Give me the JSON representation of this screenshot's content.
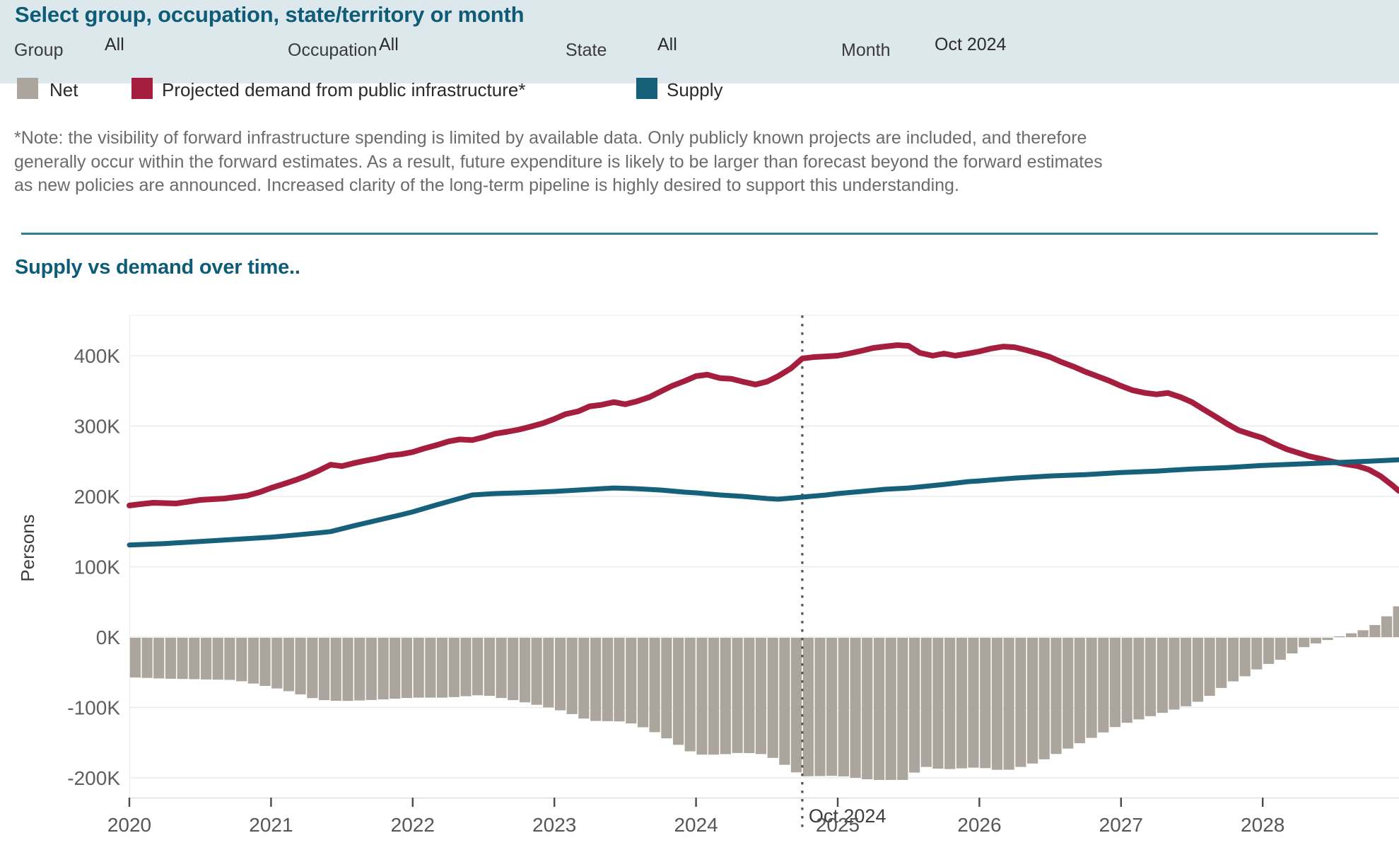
{
  "header": {
    "title": "Select group, occupation, state/territory or month",
    "filters": [
      {
        "label": "Group",
        "value": "All"
      },
      {
        "label": "Occupation",
        "value": "All"
      },
      {
        "label": "State",
        "value": "All"
      },
      {
        "label": "Month",
        "value": "Oct 2024"
      }
    ]
  },
  "legend": {
    "items": [
      {
        "label": "Net",
        "color": "#aca59d"
      },
      {
        "label": "Projected demand from public infrastructure*",
        "color": "#a61e3d"
      },
      {
        "label": "Supply",
        "color": "#16607a"
      }
    ]
  },
  "note": {
    "lines": [
      "*Note: the visibility of forward infrastructure spending is limited by available data. Only publicly known projects are included, and therefore",
      "generally occur within the forward estimates. As a result, future expenditure is likely to be larger than forecast beyond the forward estimates",
      "as new policies are announced. Increased clarity of the long-term pipeline is highly desired to support this understanding."
    ]
  },
  "section": {
    "title": "Supply vs demand over time.."
  },
  "chart_data": {
    "type": "line+bar",
    "title": "Supply vs demand over time..",
    "ylabel": "Persons",
    "unit": "thousand persons (K)",
    "ylim": [
      -250,
      460
    ],
    "xlim": [
      2020,
      2028.96
    ],
    "grid": true,
    "legend_position": "top",
    "yticks": [
      {
        "value": 400,
        "label": "400K"
      },
      {
        "value": 300,
        "label": "300K"
      },
      {
        "value": 200,
        "label": "200K"
      },
      {
        "value": 100,
        "label": "100K"
      },
      {
        "value": 0,
        "label": "0K"
      },
      {
        "value": -100,
        "label": "-100K"
      },
      {
        "value": -200,
        "label": "-200K"
      }
    ],
    "xticks": [
      {
        "value": 2020,
        "label": "2020"
      },
      {
        "value": 2021,
        "label": "2021"
      },
      {
        "value": 2022,
        "label": "2022"
      },
      {
        "value": 2023,
        "label": "2023"
      },
      {
        "value": 2024,
        "label": "2024"
      },
      {
        "value": 2025,
        "label": "2025"
      },
      {
        "value": 2026,
        "label": "2026"
      },
      {
        "value": 2027,
        "label": "2027"
      },
      {
        "value": 2028,
        "label": "2028"
      }
    ],
    "annotation": {
      "x": 2024.75,
      "label": "Oct 2024",
      "style": "vertical-dotted-line"
    },
    "series": [
      {
        "name": "Net",
        "type": "bar",
        "color": "#aca59d",
        "derivation": "Supply minus Projected demand, drawn as monthly bars",
        "points": [
          [
            2020.0,
            -56
          ],
          [
            2020.25,
            -58
          ],
          [
            2020.5,
            -59
          ],
          [
            2020.75,
            -60
          ],
          [
            2021.0,
            -70
          ],
          [
            2021.17,
            -78
          ],
          [
            2021.33,
            -88
          ],
          [
            2021.5,
            -90
          ],
          [
            2021.75,
            -88
          ],
          [
            2022.0,
            -85
          ],
          [
            2022.25,
            -85
          ],
          [
            2022.5,
            -81
          ],
          [
            2022.75,
            -90
          ],
          [
            2022.92,
            -97
          ],
          [
            2023.08,
            -105
          ],
          [
            2023.25,
            -118
          ],
          [
            2023.5,
            -119
          ],
          [
            2023.67,
            -130
          ],
          [
            2023.83,
            -147
          ],
          [
            2024.0,
            -166
          ],
          [
            2024.17,
            -166
          ],
          [
            2024.33,
            -163
          ],
          [
            2024.5,
            -166
          ],
          [
            2024.58,
            -175
          ],
          [
            2024.67,
            -186
          ],
          [
            2024.75,
            -197
          ],
          [
            2025.0,
            -196
          ],
          [
            2025.25,
            -202
          ],
          [
            2025.5,
            -202
          ],
          [
            2025.58,
            -182
          ],
          [
            2025.67,
            -185
          ],
          [
            2025.75,
            -187
          ],
          [
            2026.0,
            -184
          ],
          [
            2026.17,
            -189
          ],
          [
            2026.25,
            -186
          ],
          [
            2026.42,
            -176
          ],
          [
            2026.5,
            -169
          ],
          [
            2026.75,
            -146
          ],
          [
            2027.0,
            -123
          ],
          [
            2027.25,
            -109
          ],
          [
            2027.5,
            -95
          ],
          [
            2027.67,
            -78
          ],
          [
            2027.75,
            -64
          ],
          [
            2027.83,
            -60
          ],
          [
            2028.0,
            -40
          ],
          [
            2028.17,
            -28
          ],
          [
            2028.25,
            -16
          ],
          [
            2028.42,
            -5
          ],
          [
            2028.5,
            -1
          ],
          [
            2028.58,
            3
          ],
          [
            2028.75,
            12
          ],
          [
            2028.83,
            22
          ],
          [
            2028.92,
            37
          ],
          [
            2028.96,
            44
          ]
        ]
      },
      {
        "name": "Projected demand from public infrastructure*",
        "type": "line",
        "color": "#a61e3d",
        "points": [
          [
            2020.0,
            187
          ],
          [
            2020.08,
            189
          ],
          [
            2020.17,
            191
          ],
          [
            2020.33,
            190
          ],
          [
            2020.5,
            195
          ],
          [
            2020.67,
            197
          ],
          [
            2020.83,
            201
          ],
          [
            2020.92,
            206
          ],
          [
            2021.0,
            212
          ],
          [
            2021.08,
            217
          ],
          [
            2021.17,
            223
          ],
          [
            2021.25,
            229
          ],
          [
            2021.33,
            236
          ],
          [
            2021.42,
            245
          ],
          [
            2021.5,
            243
          ],
          [
            2021.58,
            247
          ],
          [
            2021.67,
            251
          ],
          [
            2021.75,
            254
          ],
          [
            2021.83,
            258
          ],
          [
            2021.92,
            260
          ],
          [
            2022.0,
            263
          ],
          [
            2022.08,
            268
          ],
          [
            2022.17,
            273
          ],
          [
            2022.25,
            278
          ],
          [
            2022.33,
            281
          ],
          [
            2022.42,
            280
          ],
          [
            2022.5,
            284
          ],
          [
            2022.58,
            289
          ],
          [
            2022.67,
            292
          ],
          [
            2022.75,
            295
          ],
          [
            2022.83,
            299
          ],
          [
            2022.92,
            304
          ],
          [
            2023.0,
            310
          ],
          [
            2023.08,
            317
          ],
          [
            2023.17,
            321
          ],
          [
            2023.25,
            328
          ],
          [
            2023.33,
            330
          ],
          [
            2023.42,
            334
          ],
          [
            2023.5,
            331
          ],
          [
            2023.58,
            335
          ],
          [
            2023.67,
            341
          ],
          [
            2023.75,
            349
          ],
          [
            2023.83,
            357
          ],
          [
            2023.92,
            364
          ],
          [
            2024.0,
            371
          ],
          [
            2024.08,
            373
          ],
          [
            2024.17,
            368
          ],
          [
            2024.25,
            367
          ],
          [
            2024.33,
            363
          ],
          [
            2024.42,
            359
          ],
          [
            2024.5,
            363
          ],
          [
            2024.58,
            371
          ],
          [
            2024.67,
            382
          ],
          [
            2024.75,
            396
          ],
          [
            2024.83,
            398
          ],
          [
            2024.92,
            399
          ],
          [
            2025.0,
            400
          ],
          [
            2025.08,
            403
          ],
          [
            2025.17,
            407
          ],
          [
            2025.25,
            411
          ],
          [
            2025.33,
            413
          ],
          [
            2025.42,
            415
          ],
          [
            2025.5,
            414
          ],
          [
            2025.58,
            404
          ],
          [
            2025.67,
            400
          ],
          [
            2025.75,
            403
          ],
          [
            2025.83,
            400
          ],
          [
            2025.92,
            403
          ],
          [
            2026.0,
            406
          ],
          [
            2026.08,
            410
          ],
          [
            2026.17,
            413
          ],
          [
            2026.25,
            412
          ],
          [
            2026.33,
            408
          ],
          [
            2026.42,
            403
          ],
          [
            2026.5,
            398
          ],
          [
            2026.58,
            391
          ],
          [
            2026.67,
            384
          ],
          [
            2026.75,
            377
          ],
          [
            2026.83,
            371
          ],
          [
            2026.92,
            364
          ],
          [
            2027.0,
            357
          ],
          [
            2027.08,
            351
          ],
          [
            2027.17,
            347
          ],
          [
            2027.25,
            345
          ],
          [
            2027.33,
            347
          ],
          [
            2027.42,
            341
          ],
          [
            2027.5,
            334
          ],
          [
            2027.58,
            324
          ],
          [
            2027.67,
            313
          ],
          [
            2027.75,
            303
          ],
          [
            2027.83,
            294
          ],
          [
            2027.92,
            288
          ],
          [
            2028.0,
            283
          ],
          [
            2028.08,
            275
          ],
          [
            2028.17,
            267
          ],
          [
            2028.25,
            262
          ],
          [
            2028.33,
            257
          ],
          [
            2028.42,
            253
          ],
          [
            2028.5,
            249
          ],
          [
            2028.58,
            246
          ],
          [
            2028.67,
            243
          ],
          [
            2028.75,
            238
          ],
          [
            2028.83,
            229
          ],
          [
            2028.92,
            215
          ],
          [
            2028.96,
            208
          ]
        ]
      },
      {
        "name": "Supply",
        "type": "line",
        "color": "#16607a",
        "points": [
          [
            2020.0,
            131
          ],
          [
            2020.25,
            133
          ],
          [
            2020.5,
            136
          ],
          [
            2020.75,
            139
          ],
          [
            2021.0,
            142
          ],
          [
            2021.17,
            145
          ],
          [
            2021.33,
            148
          ],
          [
            2021.42,
            150
          ],
          [
            2021.58,
            158
          ],
          [
            2021.75,
            166
          ],
          [
            2021.92,
            174
          ],
          [
            2022.0,
            178
          ],
          [
            2022.17,
            188
          ],
          [
            2022.33,
            197
          ],
          [
            2022.42,
            202
          ],
          [
            2022.58,
            204
          ],
          [
            2022.75,
            205
          ],
          [
            2023.0,
            207
          ],
          [
            2023.17,
            209
          ],
          [
            2023.33,
            211
          ],
          [
            2023.42,
            212
          ],
          [
            2023.58,
            211
          ],
          [
            2023.75,
            209
          ],
          [
            2023.92,
            206
          ],
          [
            2024.0,
            205
          ],
          [
            2024.17,
            202
          ],
          [
            2024.33,
            200
          ],
          [
            2024.5,
            197
          ],
          [
            2024.58,
            196
          ],
          [
            2024.75,
            199
          ],
          [
            2024.92,
            202
          ],
          [
            2025.0,
            204
          ],
          [
            2025.17,
            207
          ],
          [
            2025.33,
            210
          ],
          [
            2025.5,
            212
          ],
          [
            2025.75,
            217
          ],
          [
            2025.92,
            221
          ],
          [
            2026.0,
            222
          ],
          [
            2026.25,
            226
          ],
          [
            2026.5,
            229
          ],
          [
            2026.75,
            231
          ],
          [
            2027.0,
            234
          ],
          [
            2027.25,
            236
          ],
          [
            2027.5,
            239
          ],
          [
            2027.75,
            241
          ],
          [
            2028.0,
            244
          ],
          [
            2028.25,
            246
          ],
          [
            2028.5,
            248
          ],
          [
            2028.75,
            250
          ],
          [
            2028.96,
            252
          ]
        ]
      }
    ]
  },
  "colors": {
    "header_background": "#dde8ec",
    "heading_text": "#0e5c77",
    "divider": "#2f7e97",
    "note_text": "#6b6b6b",
    "axis_text": "#5e5e5e",
    "annotation_line": "#555555"
  }
}
